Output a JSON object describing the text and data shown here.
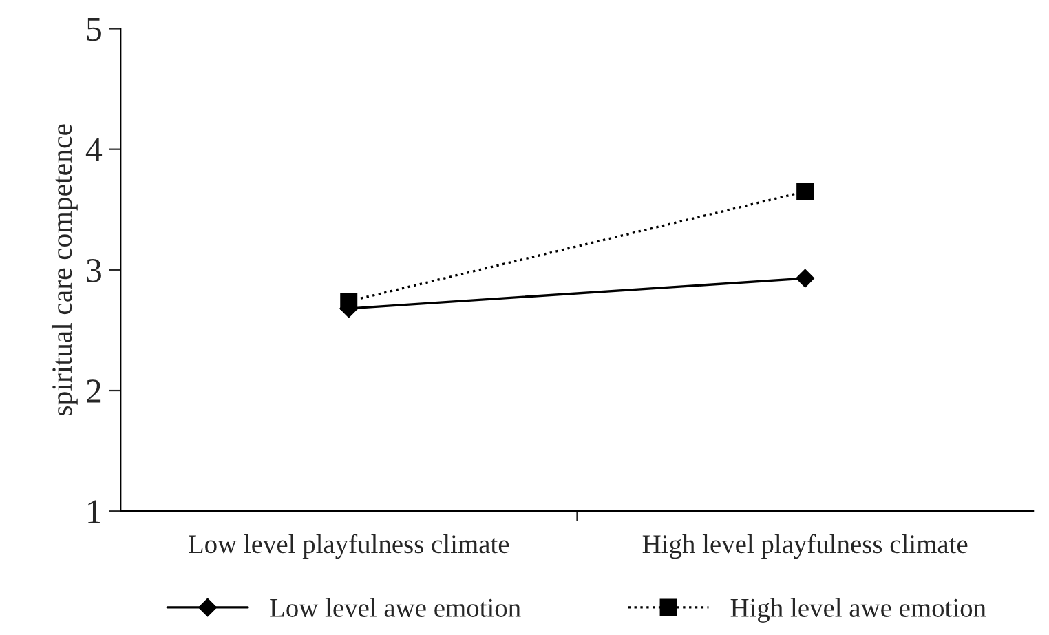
{
  "chart_data": {
    "type": "line",
    "ylabel": "spiritual care competence",
    "categories": [
      "Low level playfulness climate",
      "High level playfulness climate"
    ],
    "series": [
      {
        "name": "Low level awe emotion",
        "color": "#000000",
        "values": [
          2.68,
          2.93
        ],
        "marker": "diamond",
        "line_style": "solid"
      },
      {
        "name": "High level awe emotion",
        "color": "#000000",
        "values": [
          2.74,
          3.65
        ],
        "marker": "square",
        "line_style": "dotted"
      }
    ],
    "ylim": [
      1,
      5
    ],
    "yticks": [
      1,
      2,
      3,
      4,
      5
    ],
    "grid": false,
    "legend": "bottom"
  }
}
